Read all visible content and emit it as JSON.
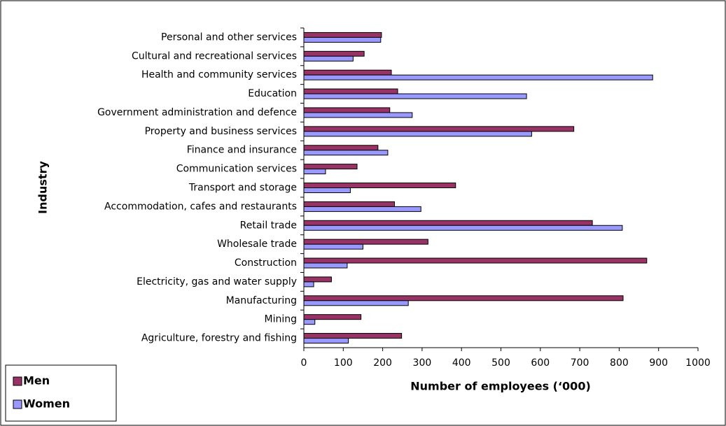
{
  "chart_data": {
    "type": "hbar",
    "x_label": "Number of employees (‘000)",
    "y_label": "Industry",
    "categories": [
      "Personal and other services",
      "Cultural and recreational services",
      "Health and community services",
      "Education",
      "Government administration and defence",
      "Property and business services",
      "Finance and insurance",
      "Communication services",
      "Transport and storage",
      "Accommodation, cafes and restaurants",
      "Retail trade",
      "Wholesale trade",
      "Construction",
      "Electricity, gas and water supply",
      "Manufacturing",
      "Mining",
      "Agriculture, forestry and fishing"
    ],
    "series": [
      {
        "name": "Men",
        "color": "#993366",
        "values": [
          197,
          153,
          222,
          238,
          218,
          685,
          188,
          135,
          385,
          230,
          732,
          315,
          870,
          70,
          810,
          145,
          248
        ]
      },
      {
        "name": "Women",
        "color": "#9999ff",
        "values": [
          195,
          125,
          885,
          565,
          275,
          578,
          213,
          55,
          118,
          297,
          808,
          150,
          110,
          25,
          265,
          28,
          113
        ]
      }
    ],
    "xlim": [
      0,
      1000
    ],
    "xticks": [
      0,
      100,
      200,
      300,
      400,
      500,
      600,
      700,
      800,
      900,
      1000
    ],
    "grid": false,
    "legend": "bottom-left"
  }
}
